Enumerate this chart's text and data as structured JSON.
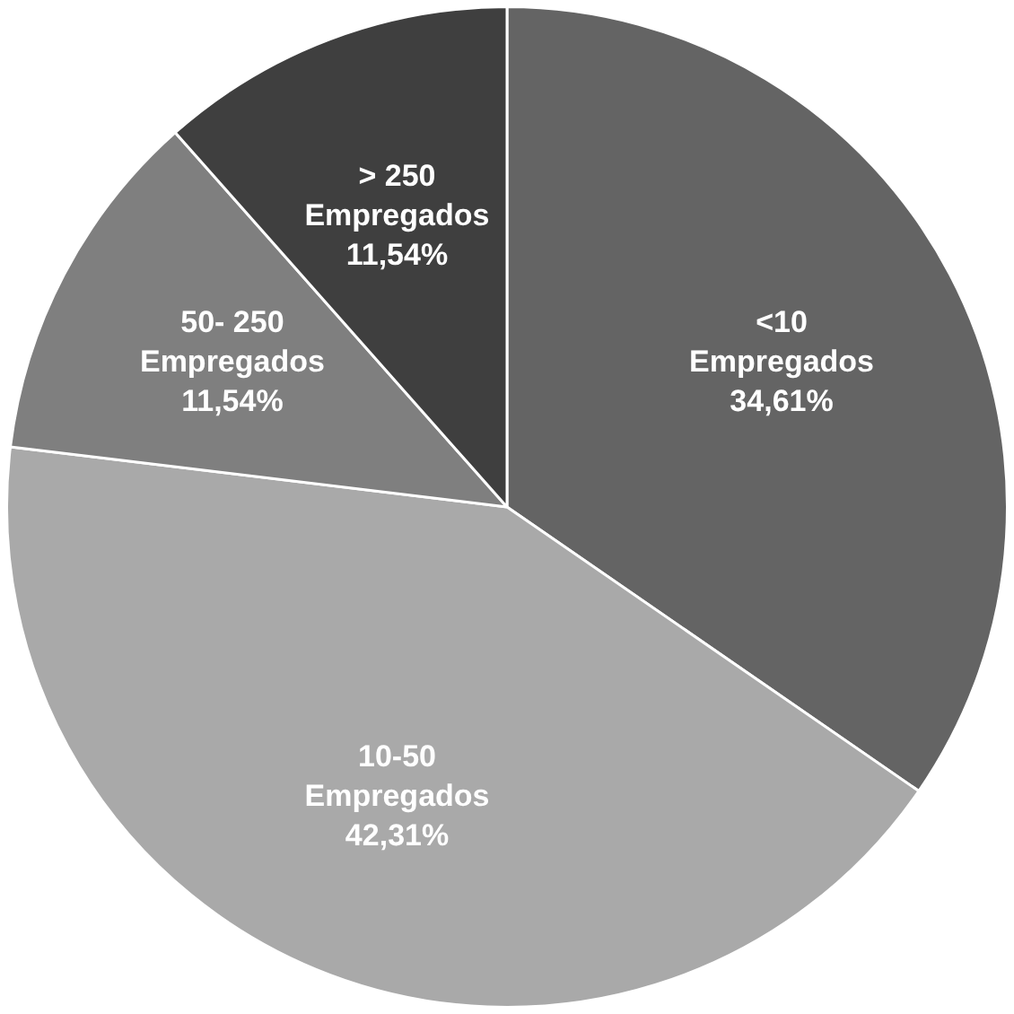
{
  "chart_data": {
    "type": "pie",
    "categories": [
      "<10\nEmpregados",
      "10-50\nEmpregados",
      "50- 250\nEmpregados",
      "> 250\nEmpregados"
    ],
    "values": [
      34.61,
      42.31,
      11.54,
      11.54
    ],
    "colors": [
      "#646464",
      "#a9a9a9",
      "#7f7f7f",
      "#3f3f3f"
    ],
    "value_labels": [
      "34,61%",
      "42,31%",
      "11,54%",
      "11,54%"
    ],
    "legend": false
  }
}
